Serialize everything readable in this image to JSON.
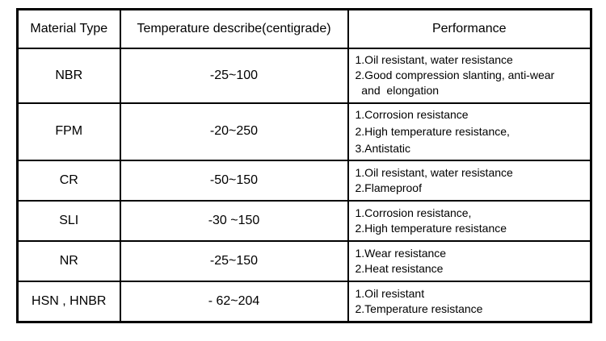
{
  "table": {
    "border_color": "#000000",
    "background": "#ffffff",
    "text_color": "#000000",
    "headers": [
      "Material Type",
      "Temperature describe(centigrade)",
      "Performance"
    ],
    "rows": [
      {
        "material": "NBR",
        "temperature": "-25~100",
        "performance": [
          "1.Oil resistant, water resistance",
          "2.Good compression slanting, anti-wear",
          "  and  elongation"
        ]
      },
      {
        "material": "FPM",
        "temperature": "-20~250",
        "performance": [
          "1.Corrosion resistance",
          "2.High temperature resistance,",
          "3.Antistatic"
        ]
      },
      {
        "material": "CR",
        "temperature": "-50~150",
        "performance": [
          "1.Oil resistant, water resistance",
          "2.Flameproof"
        ]
      },
      {
        "material": "SLI",
        "temperature": "-30 ~150",
        "performance": [
          "1.Corrosion resistance,",
          "2.High temperature resistance"
        ]
      },
      {
        "material": "NR",
        "temperature": "-25~150",
        "performance": [
          "1.Wear resistance",
          "2.Heat resistance"
        ]
      },
      {
        "material": "HSN , HNBR",
        "temperature": "- 62~204",
        "performance": [
          "1.Oil resistant",
          "2.Temperature resistance"
        ]
      }
    ]
  }
}
